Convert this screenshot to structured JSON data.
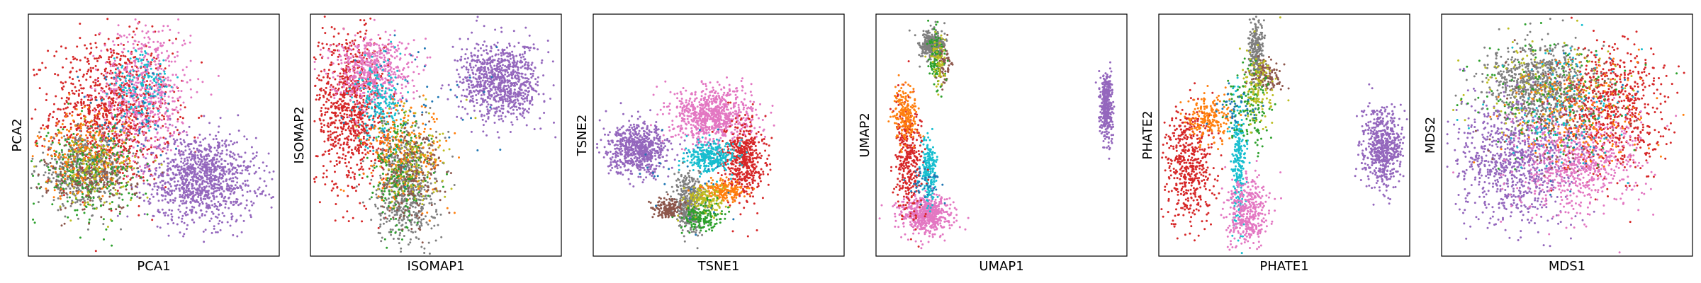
{
  "palette": {
    "blue": "#1f77b4",
    "orange": "#ff7f0e",
    "green": "#2ca02c",
    "red": "#d62728",
    "purple": "#9467bd",
    "brown": "#8c564b",
    "pink": "#e377c2",
    "gray": "#7f7f7f",
    "olive": "#bcbd22",
    "cyan": "#17becf"
  },
  "chart_data": [
    {
      "type": "scatter",
      "title": "",
      "xlabel": "PCA1",
      "ylabel": "PCA2",
      "xlim": [
        0,
        100
      ],
      "ylim": [
        0,
        100
      ],
      "grid": false,
      "ticks": "hidden",
      "clusters": [
        {
          "color": "red",
          "cx": 33,
          "cy": 60,
          "sx": 12,
          "sy": 15,
          "n": 1000
        },
        {
          "color": "pink",
          "cx": 47,
          "cy": 68,
          "sx": 9,
          "sy": 15,
          "n": 600
        },
        {
          "color": "purple",
          "cx": 69,
          "cy": 32,
          "sx": 11,
          "sy": 9,
          "n": 1100
        },
        {
          "color": "gray",
          "cx": 22,
          "cy": 35,
          "sx": 9,
          "sy": 7,
          "n": 500
        },
        {
          "color": "green",
          "cx": 24,
          "cy": 36,
          "sx": 9,
          "sy": 9,
          "n": 300
        },
        {
          "color": "brown",
          "cx": 26,
          "cy": 32,
          "sx": 9,
          "sy": 7,
          "n": 200
        },
        {
          "color": "orange",
          "cx": 22,
          "cy": 42,
          "sx": 9,
          "sy": 9,
          "n": 200
        },
        {
          "color": "olive",
          "cx": 27,
          "cy": 35,
          "sx": 8,
          "sy": 8,
          "n": 120
        },
        {
          "color": "cyan",
          "cx": 45,
          "cy": 70,
          "sx": 6,
          "sy": 8,
          "n": 150
        },
        {
          "color": "blue",
          "cx": 40,
          "cy": 60,
          "sx": 10,
          "sy": 10,
          "n": 50
        }
      ]
    },
    {
      "type": "scatter",
      "title": "",
      "xlabel": "ISOMAP1",
      "ylabel": "ISOMAP2",
      "xlim": [
        0,
        100
      ],
      "ylim": [
        0,
        100
      ],
      "grid": false,
      "ticks": "hidden",
      "clusters": [
        {
          "color": "red",
          "cx": 16,
          "cy": 62,
          "sx": 7,
          "sy": 17,
          "n": 900
        },
        {
          "color": "pink",
          "cx": 24,
          "cy": 77,
          "sx": 8,
          "sy": 7,
          "n": 550
        },
        {
          "color": "purple",
          "cx": 76,
          "cy": 72,
          "sx": 8,
          "sy": 8,
          "n": 900
        },
        {
          "color": "gray",
          "cx": 38,
          "cy": 28,
          "sx": 6,
          "sy": 12,
          "n": 600
        },
        {
          "color": "cyan",
          "cx": 28,
          "cy": 64,
          "sx": 5,
          "sy": 9,
          "n": 200
        },
        {
          "color": "orange",
          "cx": 38,
          "cy": 43,
          "sx": 8,
          "sy": 10,
          "n": 250
        },
        {
          "color": "green",
          "cx": 36,
          "cy": 33,
          "sx": 6,
          "sy": 12,
          "n": 200
        },
        {
          "color": "brown",
          "cx": 40,
          "cy": 35,
          "sx": 6,
          "sy": 10,
          "n": 200
        },
        {
          "color": "olive",
          "cx": 40,
          "cy": 40,
          "sx": 8,
          "sy": 10,
          "n": 120
        },
        {
          "color": "blue",
          "cx": 45,
          "cy": 60,
          "sx": 15,
          "sy": 15,
          "n": 50
        }
      ]
    },
    {
      "type": "scatter",
      "title": "",
      "xlabel": "TSNE1",
      "ylabel": "TSNE2",
      "xlim": [
        0,
        100
      ],
      "ylim": [
        0,
        100
      ],
      "grid": false,
      "ticks": "hidden",
      "clusters": [
        {
          "color": "purple",
          "cx": 18,
          "cy": 44,
          "sx": 6,
          "sy": 5,
          "n": 700
        },
        {
          "color": "pink",
          "cx": 48,
          "cy": 58,
          "sx": 8,
          "sy": 6,
          "n": 800
        },
        {
          "color": "red",
          "cx": 60,
          "cy": 40,
          "sx": 4,
          "sy": 8,
          "n": 500
        },
        {
          "color": "cyan",
          "cx": 47,
          "cy": 41,
          "sx": 5,
          "sy": 3,
          "n": 300
        },
        {
          "color": "gray",
          "cx": 38,
          "cy": 22,
          "sx": 3,
          "sy": 6,
          "n": 400
        },
        {
          "color": "orange",
          "cx": 52,
          "cy": 27,
          "sx": 4,
          "sy": 2,
          "n": 200
        },
        {
          "color": "olive",
          "cx": 44,
          "cy": 23,
          "sx": 4,
          "sy": 3,
          "n": 150
        },
        {
          "color": "green",
          "cx": 43,
          "cy": 16,
          "sx": 4,
          "sy": 3,
          "n": 150
        },
        {
          "color": "brown",
          "cx": 30,
          "cy": 20,
          "sx": 3,
          "sy": 2,
          "n": 150
        },
        {
          "color": "blue",
          "cx": 40,
          "cy": 35,
          "sx": 10,
          "sy": 10,
          "n": 30
        }
      ]
    },
    {
      "type": "scatter",
      "title": "",
      "xlabel": "UMAP1",
      "ylabel": "UMAP2",
      "xlim": [
        0,
        100
      ],
      "ylim": [
        0,
        100
      ],
      "grid": false,
      "ticks": "hidden",
      "clusters": [
        {
          "color": "purple",
          "cx": 92,
          "cy": 62,
          "sx": 1.2,
          "sy": 7,
          "n": 400
        },
        {
          "color": "gray",
          "cx": 22,
          "cy": 87,
          "sx": 2.5,
          "sy": 3,
          "n": 350
        },
        {
          "color": "pink",
          "cx": 20,
          "cy": 17,
          "sx": 5,
          "sy": 4,
          "n": 600
        },
        {
          "color": "cyan",
          "cx": 21,
          "cy": 35,
          "sx": 1.5,
          "sy": 7,
          "n": 200
        },
        {
          "color": "red",
          "cx": 13,
          "cy": 40,
          "sx": 3,
          "sy": 12,
          "n": 350
        },
        {
          "color": "orange",
          "cx": 12,
          "cy": 58,
          "sx": 2.5,
          "sy": 6,
          "n": 200
        },
        {
          "color": "brown",
          "cx": 27,
          "cy": 80,
          "sx": 1.5,
          "sy": 4,
          "n": 80
        },
        {
          "color": "green",
          "cx": 24,
          "cy": 82,
          "sx": 2,
          "sy": 6,
          "n": 100
        },
        {
          "color": "olive",
          "cx": 25,
          "cy": 80,
          "sx": 1.5,
          "sy": 6,
          "n": 60
        },
        {
          "color": "blue",
          "cx": 20,
          "cy": 30,
          "sx": 3,
          "sy": 3,
          "n": 40
        }
      ]
    },
    {
      "type": "scatter",
      "title": "",
      "xlabel": "PHATE1",
      "ylabel": "PHATE2",
      "xlim": [
        0,
        100
      ],
      "ylim": [
        0,
        100
      ],
      "grid": false,
      "ticks": "hidden",
      "clusters": [
        {
          "color": "purple",
          "cx": 89,
          "cy": 45,
          "sx": 4,
          "sy": 8,
          "n": 600
        },
        {
          "color": "red",
          "cx": 12,
          "cy": 38,
          "sx": 5,
          "sy": 12,
          "n": 500
        },
        {
          "color": "gray",
          "cx": 39,
          "cy": 86,
          "sx": 1.5,
          "sy": 7,
          "n": 250
        },
        {
          "color": "cyan",
          "cx": 32,
          "cy": 40,
          "sx": 1.5,
          "sy": 13,
          "n": 250
        },
        {
          "color": "pink",
          "cx": 35,
          "cy": 18,
          "sx": 4,
          "sy": 7,
          "n": 400
        },
        {
          "color": "orange",
          "cx": 20,
          "cy": 57,
          "sx": 5,
          "sy": 5,
          "n": 200
        },
        {
          "color": "brown",
          "cx": 43,
          "cy": 75,
          "sx": 3,
          "sy": 3,
          "n": 120
        },
        {
          "color": "green",
          "cx": 36,
          "cy": 62,
          "sx": 4,
          "sy": 9,
          "n": 150
        },
        {
          "color": "olive",
          "cx": 39,
          "cy": 70,
          "sx": 3,
          "sy": 9,
          "n": 120
        },
        {
          "color": "blue",
          "cx": 30,
          "cy": 60,
          "sx": 5,
          "sy": 5,
          "n": 40
        }
      ]
    },
    {
      "type": "scatter",
      "title": "",
      "xlabel": "MDS1",
      "ylabel": "MDS2",
      "xlim": [
        0,
        100
      ],
      "ylim": [
        0,
        100
      ],
      "grid": false,
      "ticks": "hidden",
      "clusters": [
        {
          "color": "purple",
          "cx": 28,
          "cy": 40,
          "sx": 12,
          "sy": 14,
          "n": 900
        },
        {
          "color": "red",
          "cx": 67,
          "cy": 60,
          "sx": 11,
          "sy": 13,
          "n": 700
        },
        {
          "color": "pink",
          "cx": 54,
          "cy": 38,
          "sx": 12,
          "sy": 11,
          "n": 700
        },
        {
          "color": "gray",
          "cx": 38,
          "cy": 72,
          "sx": 10,
          "sy": 8,
          "n": 700
        },
        {
          "color": "olive",
          "cx": 42,
          "cy": 70,
          "sx": 14,
          "sy": 10,
          "n": 150
        },
        {
          "color": "green",
          "cx": 42,
          "cy": 65,
          "sx": 14,
          "sy": 12,
          "n": 150
        },
        {
          "color": "orange",
          "cx": 55,
          "cy": 60,
          "sx": 14,
          "sy": 12,
          "n": 200
        },
        {
          "color": "cyan",
          "cx": 48,
          "cy": 60,
          "sx": 14,
          "sy": 12,
          "n": 120
        },
        {
          "color": "brown",
          "cx": 45,
          "cy": 60,
          "sx": 14,
          "sy": 12,
          "n": 100
        },
        {
          "color": "blue",
          "cx": 50,
          "cy": 55,
          "sx": 14,
          "sy": 14,
          "n": 40
        }
      ]
    }
  ]
}
